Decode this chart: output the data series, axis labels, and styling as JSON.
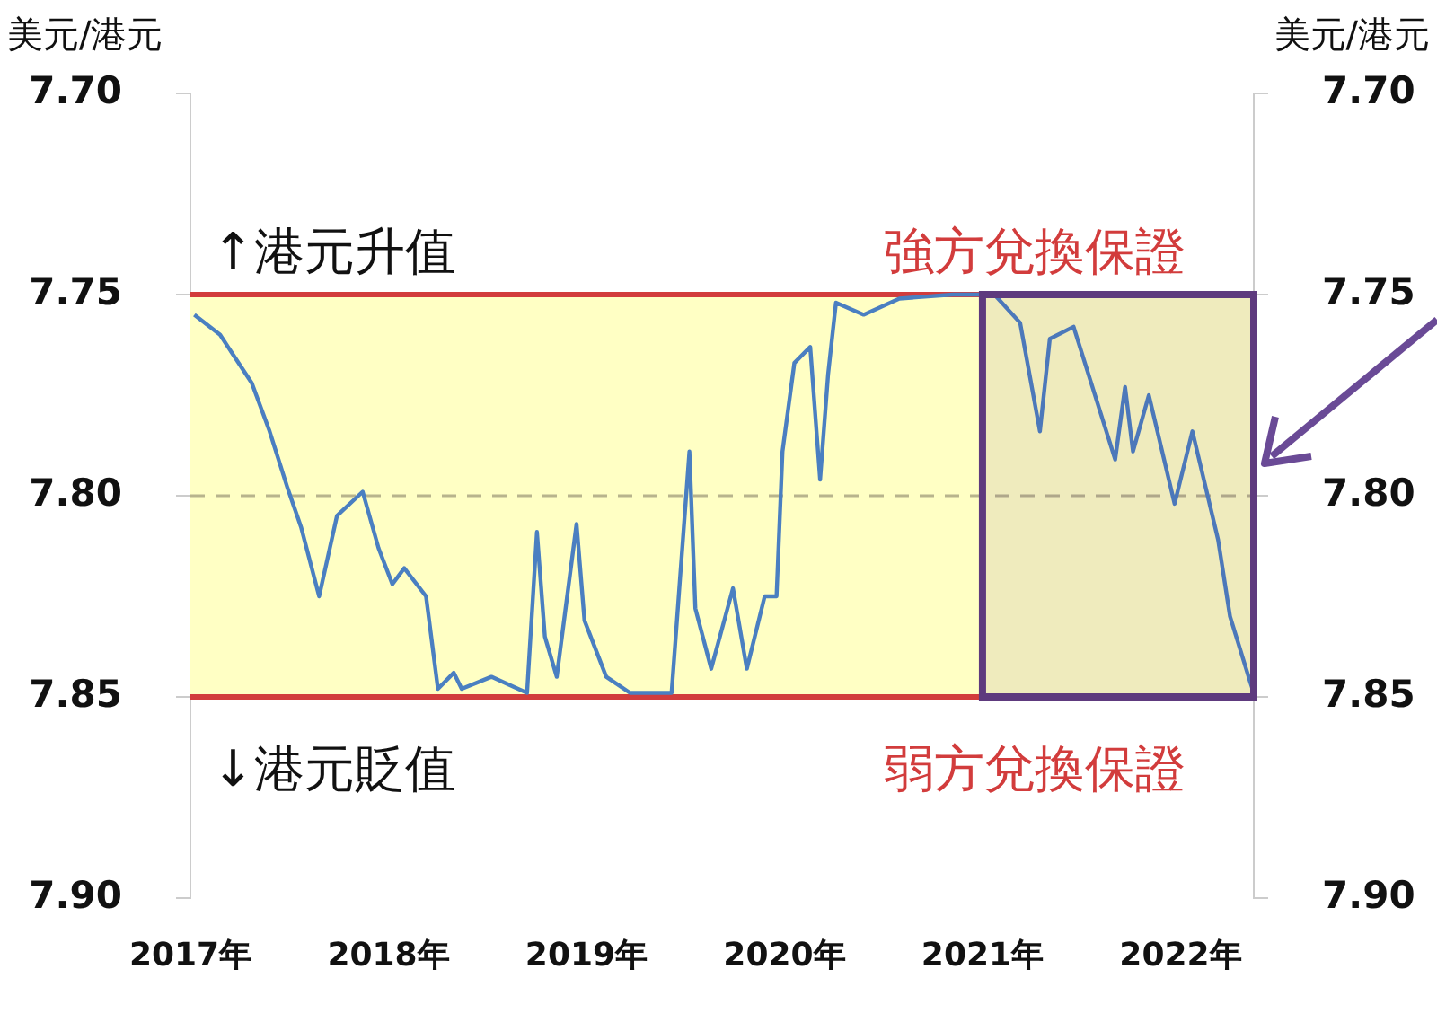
{
  "chart_data": {
    "type": "line",
    "ylabel": "美元/港元",
    "y2label": "美元/港元",
    "annotations": [
      "↑港元升值",
      "↓港元貶值"
    ],
    "series": [
      {
        "color": "#4a7fc1",
        "x": [
          2017.02,
          2017.15,
          2017.31,
          2017.4,
          2017.49,
          2017.56,
          2017.65,
          2017.74,
          2017.87,
          2017.95,
          2018.02,
          2018.08,
          2018.19,
          2018.25,
          2018.33,
          2018.37,
          2018.52,
          2018.7,
          2018.75,
          2018.79,
          2018.85,
          2018.95,
          2018.99,
          2019.1,
          2019.22,
          2019.43,
          2019.52,
          2019.55,
          2019.63,
          2019.74,
          2019.81,
          2019.9,
          2019.96,
          2019.99,
          2020.05,
          2020.13,
          2020.18,
          2020.22,
          2020.26,
          2020.4,
          2020.58,
          2020.85,
          2021.06,
          2021.19,
          2021.29,
          2021.34,
          2021.46,
          2021.67,
          2021.72,
          2021.76,
          2021.84,
          2021.97,
          2022.06,
          2022.19,
          2022.25,
          2022.35,
          2022.37
        ],
        "values": [
          7.755,
          7.76,
          7.772,
          7.784,
          7.798,
          7.808,
          7.825,
          7.805,
          7.799,
          7.813,
          7.822,
          7.818,
          7.825,
          7.848,
          7.844,
          7.848,
          7.845,
          7.849,
          7.809,
          7.835,
          7.845,
          7.807,
          7.831,
          7.845,
          7.849,
          7.849,
          7.789,
          7.828,
          7.843,
          7.823,
          7.843,
          7.825,
          7.825,
          7.789,
          7.767,
          7.763,
          7.796,
          7.77,
          7.752,
          7.755,
          7.751,
          7.75,
          7.75,
          7.757,
          7.784,
          7.761,
          7.758,
          7.791,
          7.773,
          7.789,
          7.775,
          7.802,
          7.784,
          7.811,
          7.83,
          7.846,
          7.849
        ]
      }
    ],
    "xlim": [
      2017,
      2022.37
    ],
    "xticks": [
      {
        "value": 2017,
        "label": "2017年"
      },
      {
        "value": 2018,
        "label": "2018年"
      },
      {
        "value": 2019,
        "label": "2019年"
      },
      {
        "value": 2020,
        "label": "2020年"
      },
      {
        "value": 2021,
        "label": "2021年"
      },
      {
        "value": 2022,
        "label": "2022年"
      }
    ],
    "ylim": [
      7.9,
      7.7
    ],
    "yticks": [
      {
        "value": 7.7,
        "label": "7.70"
      },
      {
        "value": 7.75,
        "label": "7.75"
      },
      {
        "value": 7.8,
        "label": "7.80"
      },
      {
        "value": 7.85,
        "label": "7.85"
      },
      {
        "value": 7.9,
        "label": "7.90"
      }
    ],
    "y2lim": [
      7.9,
      7.7
    ],
    "y2ticks": [
      {
        "value": 7.7,
        "label": "7.70"
      },
      {
        "value": 7.75,
        "label": "7.75"
      },
      {
        "value": 7.8,
        "label": "7.80"
      },
      {
        "value": 7.85,
        "label": "7.85"
      },
      {
        "value": 7.9,
        "label": "7.90"
      }
    ],
    "ref_lines": [
      {
        "axis": "y",
        "value": 7.75,
        "label": "強方兌換保證",
        "color": "#d23c3c"
      },
      {
        "axis": "y",
        "value": 7.85,
        "label": "弱方兌換保證",
        "color": "#d23c3c"
      },
      {
        "axis": "y",
        "value": 7.8,
        "color": "#b8b48c",
        "line_style": "dashed"
      }
    ],
    "bands": [
      {
        "axis": "y",
        "from": 7.75,
        "to": 7.85,
        "color": "#ffffc4"
      },
      {
        "axis": "x",
        "from": 2021,
        "to": 2022.37,
        "color": "#5e3a7e"
      }
    ],
    "grid": false,
    "legend": false,
    "marker": "none",
    "line_style": "solid"
  }
}
